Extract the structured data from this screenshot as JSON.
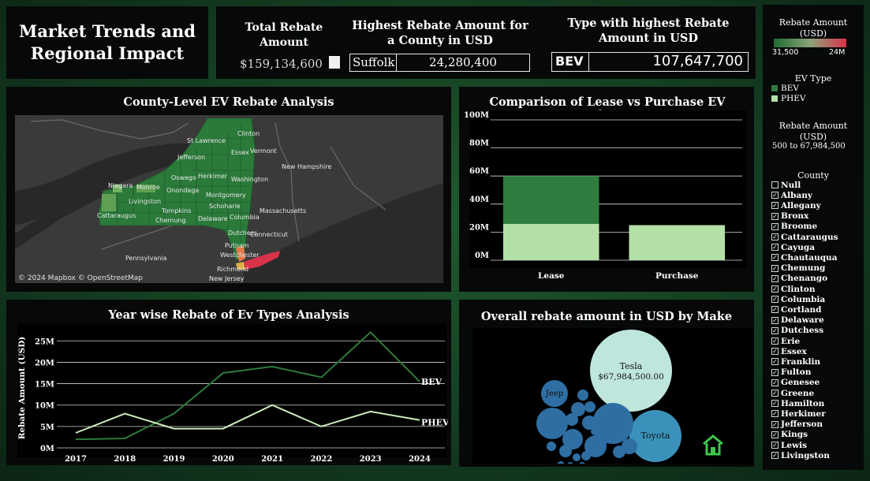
{
  "dashboard": {
    "title_line1": "Market Trends and",
    "title_line2": "Regional Impact"
  },
  "kpis": {
    "total_label": "Total Rebate Amount",
    "total_value": "$159,134,600",
    "county_label": "Highest Rebate Amount for a County in USD",
    "county_name": "Suffolk",
    "county_value": "24,280,400",
    "type_label": "Type with highest Rebate Amount in USD",
    "type_name": "BEV",
    "type_value": "107,647,700"
  },
  "map": {
    "title": "County-Level EV Rebate Analysis",
    "attribution": "© 2024 Mapbox © OpenStreetMap",
    "labels": [
      "Clinton",
      "St Lawrence",
      "Essex",
      "Vermont",
      "Jefferson",
      "New Hampshire",
      "Oswego",
      "Herkimer",
      "Washington",
      "Niagara",
      "Monroe",
      "Onondaga",
      "Montgomery",
      "Livingston",
      "Schoharie",
      "Tompkins",
      "Delaware",
      "Columbia",
      "Cattaraugus",
      "Chemung",
      "Massachusetts",
      "Dutchess",
      "Connecticut",
      "Putnam",
      "Pennsylvania",
      "Westchester",
      "Richmond",
      "New Jersey"
    ]
  },
  "colors": {
    "bev": "#2f7d3e",
    "phev": "#b3e0a6",
    "map_green": "#2b7a3a",
    "map_red": "#d8334a",
    "bubble_tesla": "#bfe6dc",
    "bubble_toyota": "#3a92bb",
    "bubble_other": "#2e6ea3",
    "home_icon": "#3cc84a"
  },
  "chart_data": [
    {
      "type": "bar",
      "title": "Comparison of Lease vs Purchase EV Rebates",
      "categories": [
        "Lease",
        "Purchase"
      ],
      "stacked": true,
      "series": [
        {
          "name": "PHEV",
          "values": [
            26,
            25
          ]
        },
        {
          "name": "BEV",
          "values": [
            34,
            0
          ]
        }
      ],
      "yticks": [
        "0M",
        "20M",
        "40M",
        "60M",
        "80M",
        "100M"
      ],
      "ylim": [
        0,
        100
      ],
      "grid": true
    },
    {
      "type": "line",
      "title": "Year wise Rebate of Ev Types Analysis",
      "x": [
        "2017",
        "2018",
        "2019",
        "2020",
        "2021",
        "2022",
        "2023",
        "2024"
      ],
      "ylabel": "Rebate Amount (USD)",
      "yticks": [
        "0M",
        "5M",
        "10M",
        "15M",
        "20M",
        "25M"
      ],
      "ylim": [
        0,
        28
      ],
      "grid": true,
      "series": [
        {
          "name": "BEV",
          "values": [
            2,
            2.2,
            8,
            17.5,
            19,
            16.5,
            27,
            15.5
          ]
        },
        {
          "name": "PHEV",
          "values": [
            3.5,
            8,
            4.5,
            4.5,
            10,
            5,
            8.5,
            6.5
          ]
        }
      ]
    },
    {
      "type": "bubble",
      "title": "Overall rebate amount in USD by Make",
      "bubbles": [
        {
          "name": "Tesla",
          "label": "Tesla",
          "value_label": "$67,984,500.00",
          "color": "#bfe6dc"
        },
        {
          "name": "Toyota",
          "label": "Toyota",
          "color": "#3a92bb"
        },
        {
          "name": "Jeep",
          "label": "Jeep",
          "color": "#2e6ea3"
        }
      ]
    }
  ],
  "legend": {
    "rebate_title": "Rebate Amount (USD)",
    "rebate_min": "31,500",
    "rebate_max": "24M",
    "ev_type_title": "EV Type",
    "ev_types": [
      "BEV",
      "PHEV"
    ],
    "filter_title": "Rebate Amount (USD)",
    "filter_range": "500 to 67,984,500",
    "county_title": "County",
    "counties": [
      {
        "name": "Null",
        "checked": false
      },
      {
        "name": "Albany",
        "checked": true
      },
      {
        "name": "Allegany",
        "checked": true
      },
      {
        "name": "Bronx",
        "checked": true
      },
      {
        "name": "Broome",
        "checked": true
      },
      {
        "name": "Cattaraugus",
        "checked": true
      },
      {
        "name": "Cayuga",
        "checked": true
      },
      {
        "name": "Chautauqua",
        "checked": true
      },
      {
        "name": "Chemung",
        "checked": true
      },
      {
        "name": "Chenango",
        "checked": true
      },
      {
        "name": "Clinton",
        "checked": true
      },
      {
        "name": "Columbia",
        "checked": true
      },
      {
        "name": "Cortland",
        "checked": true
      },
      {
        "name": "Delaware",
        "checked": true
      },
      {
        "name": "Dutchess",
        "checked": true
      },
      {
        "name": "Erie",
        "checked": true
      },
      {
        "name": "Essex",
        "checked": true
      },
      {
        "name": "Franklin",
        "checked": true
      },
      {
        "name": "Fulton",
        "checked": true
      },
      {
        "name": "Genesee",
        "checked": true
      },
      {
        "name": "Greene",
        "checked": true
      },
      {
        "name": "Hamilton",
        "checked": true
      },
      {
        "name": "Herkimer",
        "checked": true
      },
      {
        "name": "Jefferson",
        "checked": true
      },
      {
        "name": "Kings",
        "checked": true
      },
      {
        "name": "Lewis",
        "checked": true
      },
      {
        "name": "Livingston",
        "checked": true
      }
    ]
  }
}
